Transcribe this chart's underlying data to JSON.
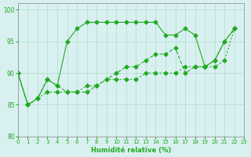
{
  "xlabel": "Humidité relative (%)",
  "ylabel": "",
  "xlim": [
    0,
    23
  ],
  "ylim": [
    80,
    101
  ],
  "yticks": [
    80,
    85,
    90,
    95,
    100
  ],
  "xticks": [
    0,
    1,
    2,
    3,
    4,
    5,
    6,
    7,
    8,
    9,
    10,
    11,
    12,
    13,
    14,
    15,
    16,
    17,
    18,
    19,
    20,
    21,
    22,
    23
  ],
  "bg_color": "#d9f0f0",
  "grid_color": "#aaddcc",
  "line_color": "#22aa22",
  "line1": [
    90,
    85,
    86,
    89,
    88,
    95,
    97,
    98,
    98,
    98,
    98,
    98,
    98,
    98,
    98,
    96,
    96,
    97,
    96,
    91,
    92,
    95,
    97
  ],
  "line2": [
    90,
    85,
    86,
    89,
    88,
    87,
    87,
    87,
    88,
    89,
    90,
    91,
    91,
    92,
    93,
    93,
    94,
    90,
    91,
    91,
    92,
    95,
    97
  ],
  "line3": [
    90,
    85,
    86,
    87,
    87,
    87,
    87,
    88,
    88,
    89,
    89,
    89,
    89,
    90,
    90,
    90,
    90,
    91,
    91,
    91,
    91,
    92,
    97
  ]
}
